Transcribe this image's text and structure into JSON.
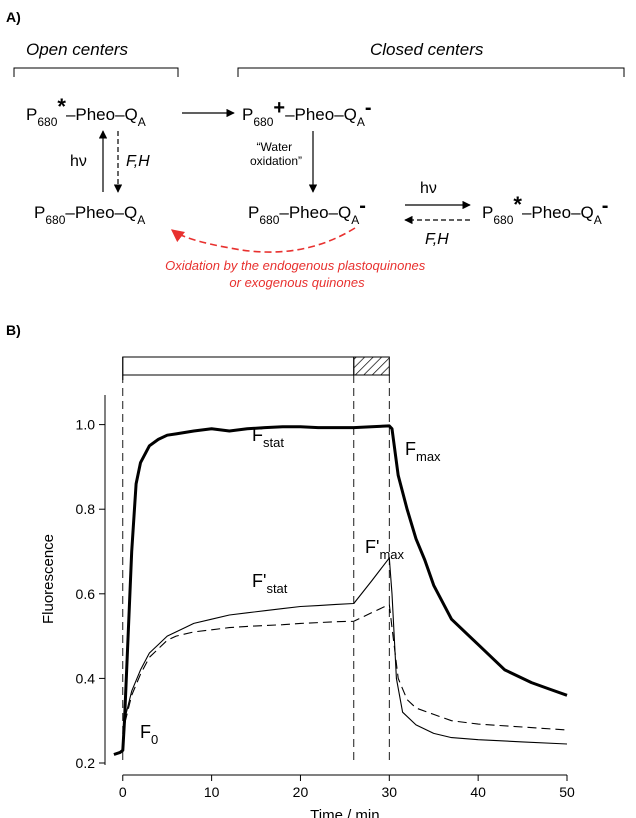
{
  "panel_a": {
    "label": "A)",
    "open_centers": "Open centers",
    "closed_centers": "Closed centers",
    "species": {
      "p680": "P",
      "p680_sub": "680",
      "star": "*",
      "plus": "+",
      "minus": "-",
      "pheo": "–Pheo–Q",
      "qa_sub": "A"
    },
    "hv": "hν",
    "fh": "F,H",
    "water_oxidation_line1": "“Water",
    "water_oxidation_line2": "oxidation”",
    "oxidation_note_line1": "Oxidation by the endogenous plastoquinones",
    "oxidation_note_line2": "or exogenous quinones",
    "red_color": "#e8312f"
  },
  "panel_b": {
    "label": "B)",
    "annotations": {
      "f_stat": "F",
      "f_stat_sub": "stat",
      "f_max": "F",
      "f_max_sub": "max",
      "f_prime_stat": "F'",
      "f_prime_stat_sub": "stat",
      "f_prime_max": "F'",
      "f_prime_max_sub": "max",
      "f_zero": "F",
      "f_zero_sub": "0"
    }
  },
  "chart_data": {
    "type": "line",
    "xlabel": "Time / min",
    "ylabel": "Fluorescence",
    "xlim": [
      -2,
      50
    ],
    "ylim": [
      0.2,
      1.07
    ],
    "x_ticks": [
      0,
      10,
      20,
      30,
      40,
      50
    ],
    "y_ticks": [
      0.2,
      0.4,
      0.6,
      0.8,
      1.0
    ],
    "x_tick_labels": [
      "0",
      "10",
      "20",
      "30",
      "40",
      "50"
    ],
    "y_tick_labels": [
      "0.2",
      "0.4",
      "0.6",
      "0.8",
      "1.0"
    ],
    "light_periods": [
      {
        "kind": "actinic",
        "start": 0,
        "end": 26
      },
      {
        "kind": "saturating",
        "start": 26,
        "end": 30
      }
    ],
    "vlines": [
      0,
      26,
      30
    ],
    "series": [
      {
        "style": "thick",
        "points": [
          [
            -1,
            0.22
          ],
          [
            -0.3,
            0.225
          ],
          [
            0,
            0.23
          ],
          [
            0.2,
            0.3
          ],
          [
            0.5,
            0.45
          ],
          [
            1,
            0.7
          ],
          [
            1.5,
            0.86
          ],
          [
            2,
            0.91
          ],
          [
            3,
            0.95
          ],
          [
            4,
            0.965
          ],
          [
            5,
            0.975
          ],
          [
            6,
            0.978
          ],
          [
            8,
            0.985
          ],
          [
            10,
            0.99
          ],
          [
            12,
            0.985
          ],
          [
            14,
            0.99
          ],
          [
            16,
            0.993
          ],
          [
            18,
            0.995
          ],
          [
            20,
            0.995
          ],
          [
            22,
            0.993
          ],
          [
            24,
            0.993
          ],
          [
            26,
            0.993
          ],
          [
            28,
            0.995
          ],
          [
            30,
            0.997
          ],
          [
            30.3,
            0.99
          ],
          [
            31,
            0.88
          ],
          [
            32,
            0.8
          ],
          [
            33,
            0.73
          ],
          [
            34,
            0.68
          ],
          [
            35,
            0.62
          ],
          [
            37,
            0.54
          ],
          [
            40,
            0.48
          ],
          [
            43,
            0.42
          ],
          [
            46,
            0.39
          ],
          [
            48,
            0.375
          ],
          [
            50,
            0.36
          ]
        ]
      },
      {
        "style": "thin",
        "points": [
          [
            0,
            0.23
          ],
          [
            0.3,
            0.31
          ],
          [
            1,
            0.37
          ],
          [
            2,
            0.42
          ],
          [
            3,
            0.46
          ],
          [
            4,
            0.48
          ],
          [
            5,
            0.5
          ],
          [
            6,
            0.51
          ],
          [
            7,
            0.52
          ],
          [
            8,
            0.53
          ],
          [
            10,
            0.54
          ],
          [
            12,
            0.55
          ],
          [
            14,
            0.555
          ],
          [
            16,
            0.56
          ],
          [
            18,
            0.565
          ],
          [
            20,
            0.57
          ],
          [
            22,
            0.572
          ],
          [
            24,
            0.575
          ],
          [
            26,
            0.577
          ],
          [
            28,
            0.63
          ],
          [
            30,
            0.685
          ],
          [
            30.3,
            0.6
          ],
          [
            30.8,
            0.4
          ],
          [
            31.5,
            0.32
          ],
          [
            33,
            0.29
          ],
          [
            35,
            0.27
          ],
          [
            37,
            0.26
          ],
          [
            40,
            0.255
          ],
          [
            45,
            0.25
          ],
          [
            50,
            0.245
          ]
        ]
      },
      {
        "style": "dashed",
        "points": [
          [
            0,
            0.23
          ],
          [
            0.3,
            0.3
          ],
          [
            1,
            0.36
          ],
          [
            2,
            0.41
          ],
          [
            3,
            0.45
          ],
          [
            4,
            0.47
          ],
          [
            5,
            0.49
          ],
          [
            6,
            0.5
          ],
          [
            8,
            0.51
          ],
          [
            10,
            0.515
          ],
          [
            12,
            0.52
          ],
          [
            14,
            0.523
          ],
          [
            16,
            0.525
          ],
          [
            18,
            0.527
          ],
          [
            20,
            0.53
          ],
          [
            22,
            0.532
          ],
          [
            24,
            0.534
          ],
          [
            26,
            0.535
          ],
          [
            28,
            0.555
          ],
          [
            30,
            0.575
          ],
          [
            30.3,
            0.52
          ],
          [
            31,
            0.4
          ],
          [
            32,
            0.35
          ],
          [
            33,
            0.33
          ],
          [
            35,
            0.315
          ],
          [
            37,
            0.3
          ],
          [
            40,
            0.292
          ],
          [
            45,
            0.285
          ],
          [
            50,
            0.278
          ]
        ]
      }
    ]
  }
}
